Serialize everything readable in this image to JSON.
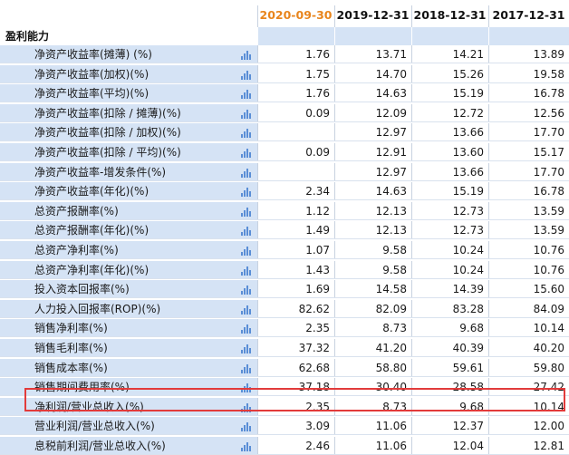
{
  "header": {
    "dates": [
      "2020-09-30",
      "2019-12-31",
      "2018-12-31",
      "2017-12-31"
    ]
  },
  "section": {
    "title": "盈利能力"
  },
  "icons": {
    "chart": "bar-chart-icon"
  },
  "colors": {
    "accent_date": "#e8851d",
    "label_bg": "#d5e3f5",
    "highlight": "#e23b3b",
    "icon": "#5a8ed6"
  },
  "rows": [
    {
      "label": "净资产收益率(摊薄) (%)",
      "values": [
        "1.76",
        "13.71",
        "14.21",
        "13.89"
      ]
    },
    {
      "label": "净资产收益率(加权)(%)",
      "values": [
        "1.75",
        "14.70",
        "15.26",
        "19.58"
      ]
    },
    {
      "label": "净资产收益率(平均)(%)",
      "values": [
        "1.76",
        "14.63",
        "15.19",
        "16.78"
      ]
    },
    {
      "label": "净资产收益率(扣除 / 摊薄)(%)",
      "values": [
        "0.09",
        "12.09",
        "12.72",
        "12.56"
      ]
    },
    {
      "label": "净资产收益率(扣除 / 加权)(%)",
      "values": [
        "",
        "12.97",
        "13.66",
        "17.70"
      ]
    },
    {
      "label": "净资产收益率(扣除 / 平均)(%)",
      "values": [
        "0.09",
        "12.91",
        "13.60",
        "15.17"
      ]
    },
    {
      "label": "净资产收益率-增发条件(%)",
      "values": [
        "",
        "12.97",
        "13.66",
        "17.70"
      ]
    },
    {
      "label": "净资产收益率(年化)(%)",
      "values": [
        "2.34",
        "14.63",
        "15.19",
        "16.78"
      ]
    },
    {
      "label": "总资产报酬率(%)",
      "values": [
        "1.12",
        "12.13",
        "12.73",
        "13.59"
      ]
    },
    {
      "label": "总资产报酬率(年化)(%)",
      "values": [
        "1.49",
        "12.13",
        "12.73",
        "13.59"
      ]
    },
    {
      "label": "总资产净利率(%)",
      "values": [
        "1.07",
        "9.58",
        "10.24",
        "10.76"
      ]
    },
    {
      "label": "总资产净利率(年化)(%)",
      "values": [
        "1.43",
        "9.58",
        "10.24",
        "10.76"
      ]
    },
    {
      "label": "投入资本回报率(%)",
      "values": [
        "1.69",
        "14.58",
        "14.39",
        "15.60"
      ]
    },
    {
      "label": "人力投入回报率(ROP)(%)",
      "values": [
        "82.62",
        "82.09",
        "83.28",
        "84.09"
      ]
    },
    {
      "label": "销售净利率(%)",
      "values": [
        "2.35",
        "8.73",
        "9.68",
        "10.14"
      ]
    },
    {
      "label": "销售毛利率(%)",
      "values": [
        "37.32",
        "41.20",
        "40.39",
        "40.20"
      ]
    },
    {
      "label": "销售成本率(%)",
      "values": [
        "62.68",
        "58.80",
        "59.61",
        "59.80"
      ]
    },
    {
      "label": "销售期间费用率(%)",
      "values": [
        "37.18",
        "30.40",
        "28.58",
        "27.42"
      ]
    },
    {
      "label": "净利润/营业总收入(%)",
      "values": [
        "2.35",
        "8.73",
        "9.68",
        "10.14"
      ]
    },
    {
      "label": "营业利润/营业总收入(%)",
      "values": [
        "3.09",
        "11.06",
        "12.37",
        "12.00"
      ]
    },
    {
      "label": "息税前利润/营业总收入(%)",
      "values": [
        "2.46",
        "11.06",
        "12.04",
        "12.81"
      ]
    }
  ]
}
